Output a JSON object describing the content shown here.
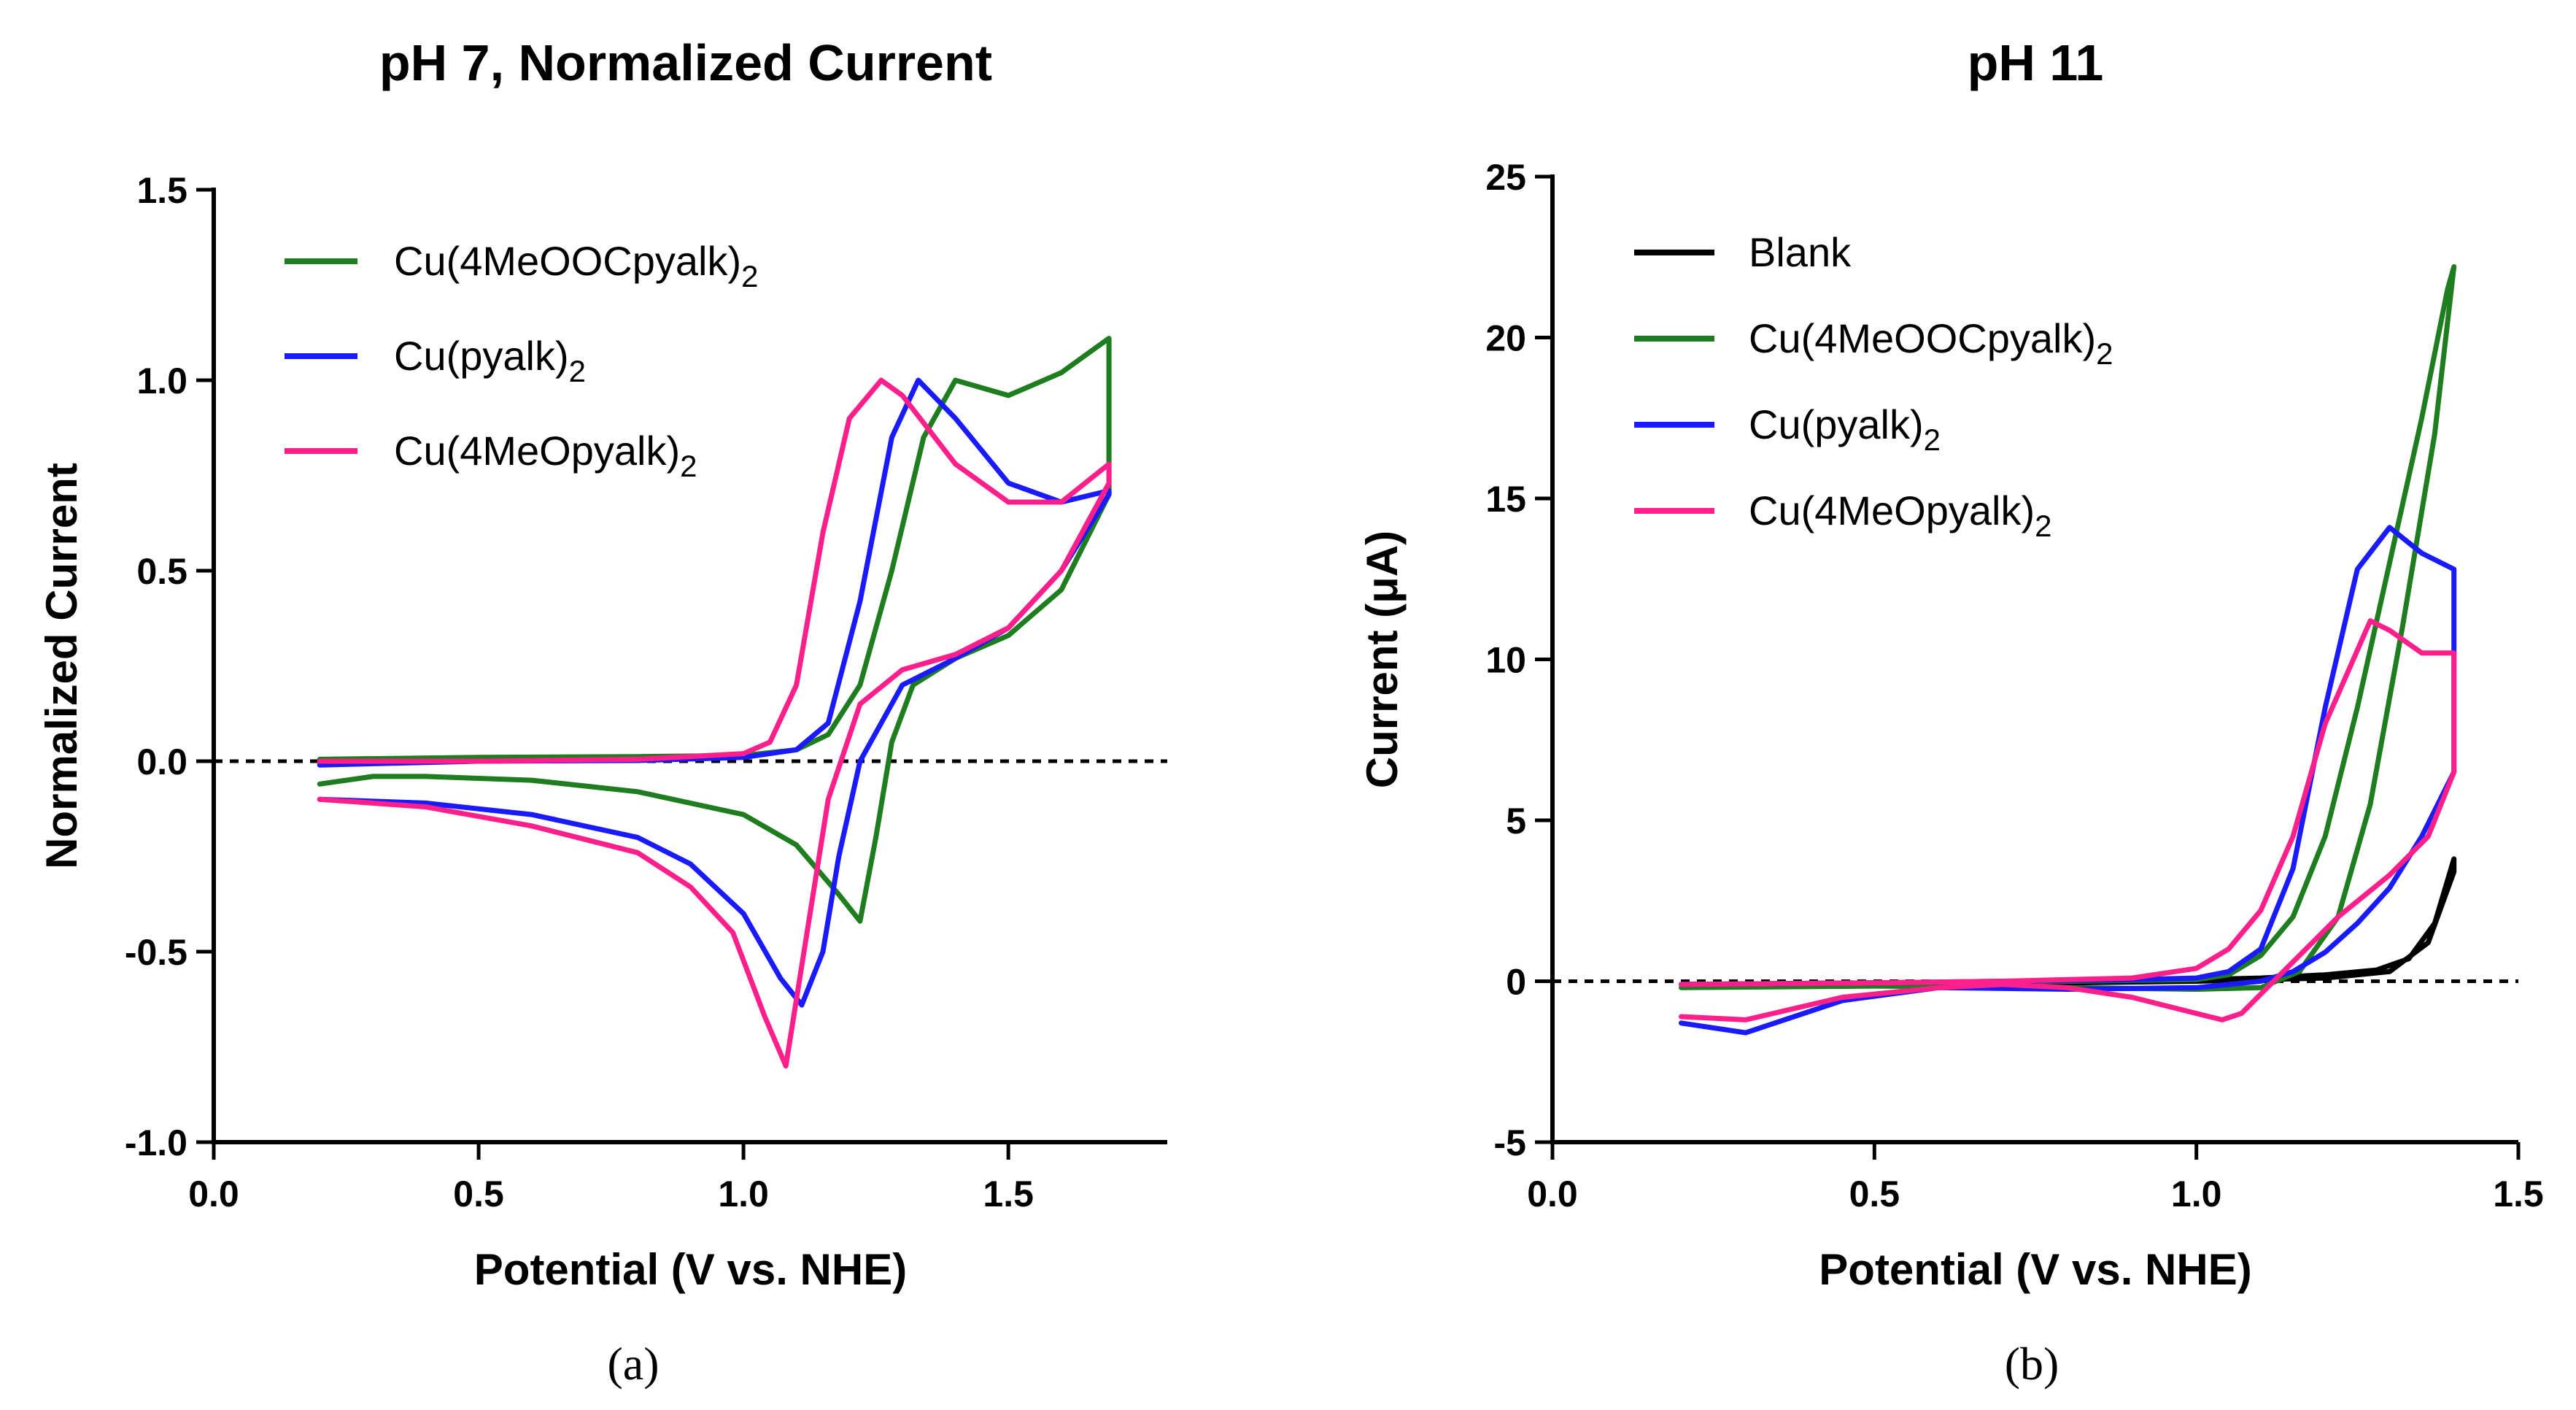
{
  "colors": {
    "Blank": "#000000",
    "Cu(4MeOOCpyalk)2": "#1e7d1e",
    "Cu(pyalk)2": "#1a1aff",
    "Cu(4MeOpyalk)2": "#ff1f8a"
  },
  "chart_data": [
    {
      "type": "line",
      "panel_label": "(a)",
      "title": "pH 7, Normalized Current",
      "xlabel": "Potential (V vs. NHE)",
      "ylabel": "Normalized Current",
      "xlim": [
        0.0,
        1.8
      ],
      "ylim": [
        -1.0,
        1.5
      ],
      "xticks": [
        0.0,
        0.5,
        1.0,
        1.5
      ],
      "xtick_labels": [
        "0.0",
        "0.5",
        "1.0",
        "1.5"
      ],
      "yticks": [
        -1.0,
        -0.5,
        0.0,
        0.5,
        1.0,
        1.5
      ],
      "ytick_labels": [
        "-1.0",
        "-0.5",
        "0.0",
        "0.5",
        "1.0",
        "1.5"
      ],
      "zero_line": true,
      "grid": false,
      "legend_position": "top-left",
      "legend": [
        {
          "base": "Cu(4MeOOCpyalk)",
          "sub": "2",
          "key": "Cu(4MeOOCpyalk)2"
        },
        {
          "base": "Cu(pyalk)",
          "sub": "2",
          "key": "Cu(pyalk)2"
        },
        {
          "base": "Cu(4MeOpyalk)",
          "sub": "2",
          "key": "Cu(4MeOpyalk)2"
        }
      ],
      "series": [
        {
          "key": "Cu(4MeOOCpyalk)2",
          "x": [
            0.2,
            0.5,
            0.8,
            1.0,
            1.1,
            1.16,
            1.22,
            1.28,
            1.34,
            1.4,
            1.5,
            1.6,
            1.66,
            1.69,
            1.69,
            1.6,
            1.5,
            1.4,
            1.32,
            1.28,
            1.25,
            1.22,
            1.18,
            1.1,
            1.0,
            0.8,
            0.6,
            0.4,
            0.3,
            0.2
          ],
          "y": [
            0.005,
            0.01,
            0.012,
            0.015,
            0.03,
            0.07,
            0.2,
            0.5,
            0.85,
            1.0,
            0.96,
            1.02,
            1.08,
            1.11,
            0.7,
            0.45,
            0.33,
            0.27,
            0.2,
            0.05,
            -0.2,
            -0.42,
            -0.35,
            -0.22,
            -0.14,
            -0.08,
            -0.05,
            -0.04,
            -0.04,
            -0.06
          ]
        },
        {
          "key": "Cu(pyalk)2",
          "x": [
            0.2,
            0.5,
            0.8,
            1.0,
            1.1,
            1.16,
            1.22,
            1.28,
            1.33,
            1.4,
            1.5,
            1.6,
            1.69,
            1.69,
            1.6,
            1.5,
            1.4,
            1.3,
            1.22,
            1.18,
            1.15,
            1.11,
            1.07,
            1.0,
            0.9,
            0.8,
            0.6,
            0.4,
            0.2
          ],
          "y": [
            -0.01,
            0.0,
            0.002,
            0.01,
            0.03,
            0.1,
            0.42,
            0.85,
            1.0,
            0.9,
            0.73,
            0.68,
            0.71,
            0.7,
            0.5,
            0.35,
            0.27,
            0.2,
            0.0,
            -0.25,
            -0.5,
            -0.64,
            -0.57,
            -0.4,
            -0.27,
            -0.2,
            -0.14,
            -0.11,
            -0.1
          ]
        },
        {
          "key": "Cu(4MeOpyalk)2",
          "x": [
            0.2,
            0.5,
            0.8,
            1.0,
            1.05,
            1.1,
            1.15,
            1.2,
            1.26,
            1.3,
            1.4,
            1.5,
            1.6,
            1.69,
            1.69,
            1.6,
            1.5,
            1.4,
            1.3,
            1.22,
            1.16,
            1.12,
            1.08,
            1.04,
            0.98,
            0.9,
            0.8,
            0.6,
            0.4,
            0.2
          ],
          "y": [
            0.0,
            0.0,
            0.005,
            0.02,
            0.05,
            0.2,
            0.6,
            0.9,
            1.0,
            0.96,
            0.78,
            0.68,
            0.68,
            0.78,
            0.73,
            0.5,
            0.35,
            0.28,
            0.24,
            0.15,
            -0.1,
            -0.45,
            -0.8,
            -0.67,
            -0.45,
            -0.33,
            -0.24,
            -0.17,
            -0.12,
            -0.1
          ]
        }
      ]
    },
    {
      "type": "line",
      "panel_label": "(b)",
      "title": "pH 11",
      "xlabel": "Potential (V vs. NHE)",
      "ylabel": "Current (μA)",
      "xlim": [
        0.0,
        1.5
      ],
      "ylim": [
        -5,
        25
      ],
      "xticks": [
        0.0,
        0.5,
        1.0,
        1.5
      ],
      "xtick_labels": [
        "0.0",
        "0.5",
        "1.0",
        "1.5"
      ],
      "yticks": [
        -5,
        0,
        5,
        10,
        15,
        20,
        25
      ],
      "ytick_labels": [
        "-5",
        "0",
        "5",
        "10",
        "15",
        "20",
        "25"
      ],
      "zero_line": true,
      "grid": false,
      "legend_position": "top-left",
      "legend": [
        {
          "base": "Blank",
          "sub": "",
          "key": "Blank"
        },
        {
          "base": "Cu(4MeOOCpyalk)",
          "sub": "2",
          "key": "Cu(4MeOOCpyalk)2"
        },
        {
          "base": "Cu(pyalk)",
          "sub": "2",
          "key": "Cu(pyalk)2"
        },
        {
          "base": "Cu(4MeOpyalk)",
          "sub": "2",
          "key": "Cu(4MeOpyalk)2"
        }
      ],
      "series": [
        {
          "key": "Blank",
          "x": [
            0.2,
            0.5,
            0.8,
            1.0,
            1.1,
            1.2,
            1.28,
            1.33,
            1.37,
            1.4,
            1.4,
            1.36,
            1.3,
            1.2,
            1.1,
            1.0,
            0.8,
            0.5,
            0.2
          ],
          "y": [
            -0.1,
            -0.05,
            0.0,
            0.05,
            0.1,
            0.2,
            0.35,
            0.7,
            1.8,
            3.8,
            3.4,
            1.2,
            0.3,
            0.1,
            0.05,
            0.0,
            -0.05,
            -0.1,
            -0.1
          ]
        },
        {
          "key": "Cu(4MeOOCpyalk)2",
          "x": [
            0.2,
            0.5,
            0.8,
            1.0,
            1.05,
            1.1,
            1.15,
            1.2,
            1.25,
            1.3,
            1.35,
            1.39,
            1.4,
            1.37,
            1.32,
            1.27,
            1.22,
            1.16,
            1.1,
            1.0,
            0.8,
            0.5,
            0.2
          ],
          "y": [
            -0.1,
            -0.05,
            0.0,
            0.05,
            0.2,
            0.8,
            2.0,
            4.5,
            8.5,
            13.0,
            17.5,
            21.5,
            22.2,
            17.0,
            11.0,
            5.5,
            2.0,
            0.3,
            -0.2,
            -0.25,
            -0.2,
            -0.15,
            -0.2
          ]
        },
        {
          "key": "Cu(pyalk)2",
          "x": [
            0.2,
            0.5,
            0.7,
            0.9,
            1.0,
            1.05,
            1.1,
            1.15,
            1.2,
            1.25,
            1.3,
            1.35,
            1.4,
            1.4,
            1.35,
            1.3,
            1.25,
            1.2,
            1.15,
            1.1,
            1.0,
            0.8,
            0.6,
            0.45,
            0.3,
            0.2
          ],
          "y": [
            -0.1,
            -0.05,
            0.0,
            0.05,
            0.1,
            0.3,
            1.0,
            3.5,
            8.5,
            12.8,
            14.1,
            13.3,
            12.8,
            6.5,
            4.5,
            2.9,
            1.8,
            0.9,
            0.3,
            0.0,
            -0.2,
            -0.25,
            -0.2,
            -0.6,
            -1.6,
            -1.3
          ]
        },
        {
          "key": "Cu(4MeOpyalk)2",
          "x": [
            0.2,
            0.5,
            0.7,
            0.9,
            1.0,
            1.05,
            1.1,
            1.15,
            1.2,
            1.27,
            1.3,
            1.35,
            1.4,
            1.4,
            1.36,
            1.3,
            1.22,
            1.15,
            1.1,
            1.07,
            1.04,
            1.0,
            0.9,
            0.8,
            0.7,
            0.6,
            0.45,
            0.3,
            0.2
          ],
          "y": [
            -0.1,
            -0.05,
            0.0,
            0.1,
            0.4,
            1.0,
            2.2,
            4.5,
            8.0,
            11.2,
            10.9,
            10.2,
            10.2,
            6.5,
            4.5,
            3.3,
            2.0,
            0.6,
            -0.4,
            -1.0,
            -1.2,
            -1.0,
            -0.5,
            -0.2,
            -0.1,
            -0.2,
            -0.5,
            -1.2,
            -1.1
          ]
        }
      ]
    }
  ]
}
